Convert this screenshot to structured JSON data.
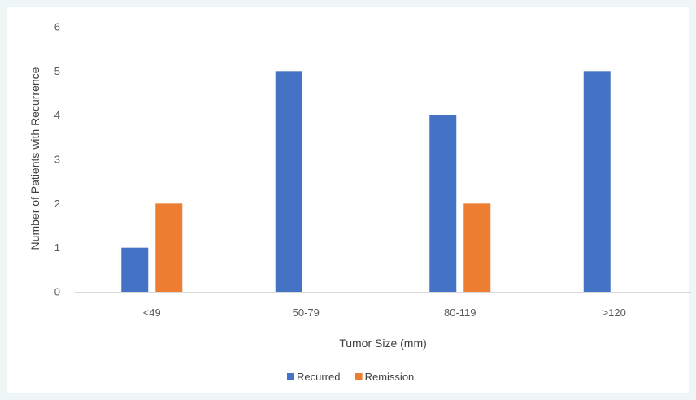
{
  "chart_data": {
    "type": "bar",
    "title": "",
    "xlabel": "Tumor Size (mm)",
    "ylabel": "Number of Patients with Recurrence",
    "categories": [
      "<49",
      "50-79",
      "80-119",
      ">120"
    ],
    "series": [
      {
        "name": "Recurred",
        "values": [
          1,
          5,
          4,
          5
        ],
        "color": "#4472c4"
      },
      {
        "name": "Remission",
        "values": [
          2,
          0,
          2,
          0
        ],
        "color": "#ed7d31"
      }
    ],
    "ylim": [
      0,
      6
    ],
    "yticks": [
      "0",
      "1",
      "2",
      "3",
      "4",
      "5",
      "6"
    ],
    "grid": false,
    "legend_position": "bottom"
  }
}
